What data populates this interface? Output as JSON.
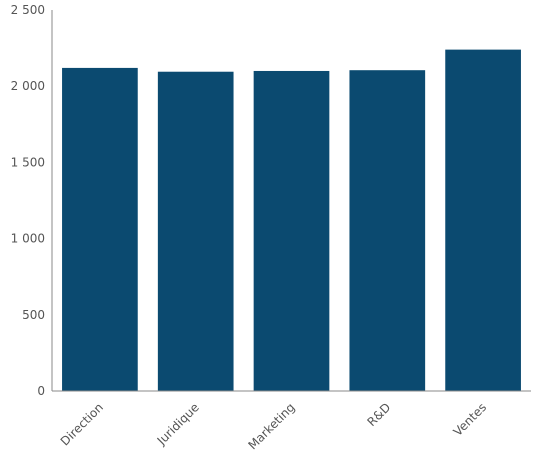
{
  "chart_data": {
    "type": "bar",
    "title": "",
    "xlabel": "",
    "ylabel": "",
    "categories": [
      "Direction",
      "Juridique",
      "Marketing",
      "R&D",
      "Ventes"
    ],
    "values": [
      2120,
      2095,
      2100,
      2105,
      2240
    ],
    "ylim": [
      0,
      2500
    ],
    "yticks": [
      0,
      500,
      1000,
      1500,
      2000,
      2500
    ],
    "ytick_labels": [
      "0",
      "500",
      "1 000",
      "1 500",
      "2 000",
      "2 500"
    ],
    "grid": false,
    "legend": "none",
    "bar_color": "#0b4a70",
    "axis_color": "#8a8a8a",
    "tick_label_color": "#555555"
  }
}
